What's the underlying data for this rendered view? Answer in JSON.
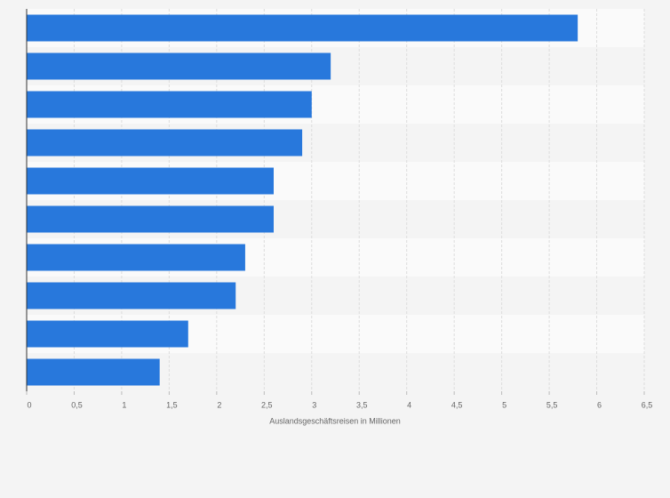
{
  "chart_data": {
    "type": "bar",
    "orientation": "horizontal",
    "x_label": "Auslandsgeschäftsreisen in Millionen",
    "categories": [
      null,
      null,
      null,
      null,
      null,
      null,
      null,
      null,
      null,
      null
    ],
    "values": [
      5.8,
      3.2,
      3.0,
      2.9,
      2.6,
      2.6,
      2.3,
      2.2,
      1.7,
      1.4
    ],
    "color": "#2878dc",
    "xlim": [
      0,
      6.5
    ],
    "xticks": [
      0,
      {
        "value": 0.5,
        "label": "0,5"
      },
      1,
      {
        "value": 1.5,
        "label": "1,5"
      },
      2,
      {
        "value": 2.5,
        "label": "2,5"
      },
      3,
      {
        "value": 3.5,
        "label": "3,5"
      },
      4,
      {
        "value": 4.5,
        "label": "4,5"
      },
      5,
      {
        "value": 5.5,
        "label": "5,5"
      },
      6,
      {
        "value": 6.5,
        "label": "6,5"
      }
    ],
    "grid": true
  }
}
